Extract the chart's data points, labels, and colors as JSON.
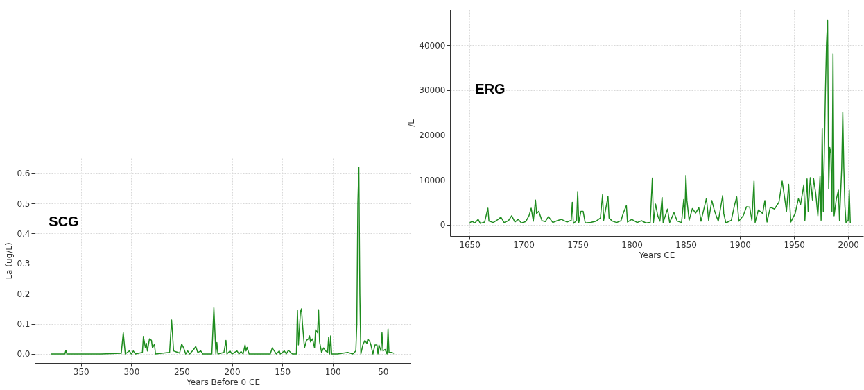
{
  "chart_data": [
    {
      "type": "line",
      "xlabel": "Years Before 0 CE",
      "ylabel": "La (ug/L)",
      "annotations": [
        "SCG"
      ],
      "color": "#1e8c1e",
      "grid": true,
      "xlim": [
        396,
        22
      ],
      "ylim": [
        -0.03,
        0.65
      ],
      "xticks": [
        350,
        300,
        250,
        200,
        150,
        100,
        50
      ],
      "yticks": [
        {
          "value": 0,
          "label": "0.0"
        },
        0.1,
        0.2,
        0.3,
        0.4,
        0.5,
        0.6
      ],
      "x": [
        380,
        366,
        365,
        364,
        330,
        310,
        308,
        306,
        302,
        300,
        298,
        296,
        289,
        288,
        286,
        285,
        284,
        282,
        280,
        279,
        277,
        276,
        270,
        262,
        260,
        258,
        252,
        250,
        248,
        246,
        244,
        242,
        238,
        236,
        234,
        231,
        229,
        220,
        218,
        216,
        215,
        214,
        208,
        206,
        205,
        202,
        200,
        195,
        193,
        191,
        189,
        187,
        186,
        185,
        183,
        175,
        162,
        160,
        158,
        156,
        153,
        152,
        148,
        146,
        144,
        140,
        136,
        135,
        134,
        132,
        131,
        130,
        128,
        126,
        124,
        123,
        122,
        120,
        118,
        117,
        115,
        114,
        113,
        111,
        109,
        107,
        105,
        104,
        103,
        102,
        101,
        95,
        85,
        80,
        77,
        76,
        75,
        74,
        73,
        72,
        70,
        68,
        66,
        65,
        63,
        62,
        60,
        58,
        56,
        55,
        54,
        52,
        51,
        50,
        48,
        46,
        45,
        44,
        41,
        39
      ],
      "values": [
        0,
        0,
        0.012,
        0,
        0,
        0.002,
        0.07,
        0,
        0.01,
        0,
        0.01,
        0,
        0.005,
        0.058,
        0.02,
        0.035,
        0.01,
        0.05,
        0.045,
        0.02,
        0.032,
        0,
        0.002,
        0.005,
        0.113,
        0.01,
        0.003,
        0.033,
        0.02,
        0,
        0.01,
        0,
        0.015,
        0.025,
        0.005,
        0.01,
        0,
        0,
        0.153,
        0,
        0.038,
        0,
        0.005,
        0.045,
        0,
        0.01,
        0,
        0.01,
        0,
        0.008,
        0,
        0.03,
        0.01,
        0.022,
        0,
        0,
        0,
        0.02,
        0.01,
        0,
        0.01,
        0,
        0.01,
        0,
        0.012,
        0,
        0,
        0.145,
        0.03,
        0.14,
        0.15,
        0.1,
        0.02,
        0.045,
        0.05,
        0.06,
        0.04,
        0.05,
        0.02,
        0.08,
        0.07,
        0.147,
        0.04,
        0.005,
        0.02,
        0.01,
        0.005,
        0.055,
        0,
        0.06,
        0,
        0,
        0.005,
        0,
        0.01,
        0.1,
        0.5,
        0.62,
        0.2,
        0,
        0.03,
        0.045,
        0.035,
        0.05,
        0.04,
        0.03,
        0,
        0.03,
        0.03,
        0,
        0.03,
        0.01,
        0.07,
        0.01,
        0.015,
        0,
        0.083,
        0.005,
        0.005,
        0.002
      ]
    },
    {
      "type": "line",
      "xlabel": "Years CE",
      "ylabel": "/L",
      "annotations": [
        "ERG"
      ],
      "color": "#1e8c1e",
      "grid": true,
      "xlim": [
        1632,
        2014
      ],
      "ylim": [
        -2500,
        47900
      ],
      "xticks": [
        1650,
        1700,
        1750,
        1800,
        1850,
        1900,
        1950,
        2000
      ],
      "yticks": [
        0,
        10000,
        20000,
        30000,
        40000
      ],
      "x": [
        1650,
        1652,
        1655,
        1658,
        1660,
        1664,
        1667,
        1668,
        1672,
        1676,
        1679,
        1682,
        1686,
        1689,
        1692,
        1695,
        1698,
        1702,
        1705,
        1707,
        1709,
        1711,
        1712,
        1714,
        1717,
        1720,
        1723,
        1727,
        1731,
        1735,
        1740,
        1744,
        1745,
        1746,
        1749,
        1750,
        1751,
        1753,
        1755,
        1757,
        1762,
        1767,
        1771,
        1773,
        1774,
        1778,
        1779,
        1782,
        1786,
        1790,
        1792,
        1795,
        1796,
        1800,
        1805,
        1809,
        1813,
        1817,
        1819,
        1820,
        1822,
        1824,
        1826,
        1828,
        1829,
        1833,
        1835,
        1839,
        1842,
        1846,
        1848,
        1849,
        1850,
        1851,
        1853,
        1856,
        1859,
        1862,
        1864,
        1869,
        1871,
        1874,
        1876,
        1878,
        1880,
        1884,
        1885,
        1887,
        1892,
        1895,
        1897,
        1899,
        1903,
        1906,
        1909,
        1911,
        1913,
        1914,
        1917,
        1921,
        1923,
        1925,
        1928,
        1932,
        1934,
        1936,
        1939,
        1941,
        1943,
        1945,
        1947,
        1951,
        1954,
        1956,
        1959,
        1960,
        1962,
        1963,
        1965,
        1967,
        1968,
        1970,
        1972,
        1974,
        1975,
        1976,
        1977,
        1979,
        1980,
        1981,
        1982,
        1983,
        1984,
        1985,
        1986,
        1987,
        1989,
        1991,
        1992,
        1994,
        1995,
        1996,
        1997,
        1998,
        2000,
        2001,
        2002
      ],
      "values": [
        300,
        800,
        400,
        1200,
        300,
        600,
        3700,
        800,
        500,
        1100,
        1700,
        500,
        900,
        2000,
        600,
        1200,
        400,
        700,
        2000,
        3700,
        800,
        5500,
        2500,
        3000,
        900,
        700,
        1800,
        500,
        900,
        1200,
        600,
        1000,
        5000,
        300,
        900,
        7400,
        500,
        3000,
        3000,
        400,
        500,
        800,
        1500,
        6700,
        1000,
        6300,
        1500,
        800,
        500,
        900,
        2500,
        4300,
        600,
        1200,
        500,
        900,
        400,
        500,
        10400,
        500,
        4600,
        2000,
        800,
        6100,
        500,
        3500,
        500,
        2700,
        800,
        500,
        5600,
        1500,
        11000,
        5400,
        1000,
        3600,
        2600,
        3800,
        800,
        5900,
        1000,
        5400,
        3500,
        2000,
        800,
        6500,
        2500,
        400,
        1000,
        4400,
        6200,
        800,
        2000,
        4000,
        3900,
        1000,
        9700,
        500,
        3300,
        2500,
        5400,
        600,
        3900,
        3500,
        4300,
        5000,
        9700,
        6500,
        3000,
        9000,
        600,
        2500,
        5800,
        4500,
        8900,
        1000,
        10200,
        3000,
        10500,
        5500,
        10300,
        7000,
        2000,
        10800,
        1000,
        21400,
        3000,
        30000,
        40500,
        45500,
        8000,
        17200,
        16000,
        3000,
        38000,
        2000,
        5600,
        7700,
        1000,
        12500,
        25000,
        12700,
        4200,
        500,
        1000,
        7700,
        300
      ]
    }
  ]
}
